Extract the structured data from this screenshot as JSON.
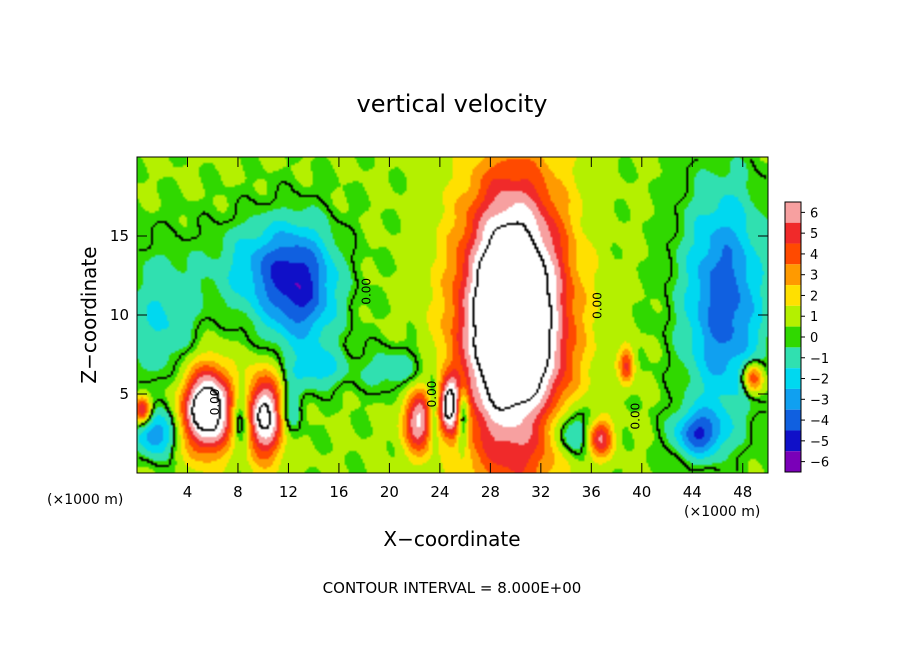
{
  "chart_data": {
    "type": "heatmap",
    "title": "vertical velocity",
    "xlabel": "X−coordinate",
    "ylabel": "Z−coordinate",
    "x_unit_label": "(×1000 m)",
    "y_unit_label": "(×1000 m)",
    "xlim": [
      0,
      50
    ],
    "ylim": [
      0,
      20
    ],
    "x_ticks": [
      4,
      8,
      12,
      16,
      20,
      24,
      28,
      32,
      36,
      40,
      44,
      48
    ],
    "x_tick_labels": [
      "4",
      "8",
      "12",
      "16",
      "20",
      "24",
      "28",
      "32",
      "36",
      "40",
      "44",
      "48"
    ],
    "y_ticks": [
      5,
      10,
      15
    ],
    "y_tick_labels": [
      "5",
      "10",
      "15"
    ],
    "colorbar": {
      "levels": [
        6,
        5,
        4,
        3,
        2,
        1,
        0,
        -1,
        -2,
        -3,
        -4,
        -5,
        -6
      ],
      "labels": [
        "6",
        "5",
        "4",
        "3",
        "2",
        "1",
        "0",
        "−1",
        "−2",
        "−3",
        "−4",
        "−5",
        "−6"
      ],
      "colors": [
        "#f7a0a0",
        "#f02a2a",
        "#ff4a00",
        "#ff9a00",
        "#ffe000",
        "#b4f000",
        "#30d800",
        "#30e0b0",
        "#00d8f0",
        "#10a0f0",
        "#1060e0",
        "#1010c8",
        "#7a00b8"
      ]
    },
    "contour_labels": [
      {
        "text": "0.00",
        "x": 6.5,
        "z": 4.5
      },
      {
        "text": "0.00",
        "x": 18.5,
        "z": 11.5
      },
      {
        "text": "0.00",
        "x": 23.7,
        "z": 5.0
      },
      {
        "text": "0.00",
        "x": 36.8,
        "z": 10.6
      },
      {
        "text": "0.00",
        "x": 39.8,
        "z": 3.6
      }
    ],
    "features": [
      {
        "kind": "updraft",
        "x": 29.8,
        "z": 9.5,
        "rx": 4.0,
        "rz": 8.5,
        "amp": 13
      },
      {
        "kind": "updraft",
        "x": 5.6,
        "z": 4.0,
        "rx": 2.0,
        "rz": 2.6,
        "amp": 10
      },
      {
        "kind": "updraft",
        "x": 10.2,
        "z": 3.6,
        "rx": 1.6,
        "rz": 2.6,
        "amp": 8
      },
      {
        "kind": "updraft",
        "x": 22.3,
        "z": 3.3,
        "rx": 1.2,
        "rz": 2.0,
        "amp": 6
      },
      {
        "kind": "updraft",
        "x": 24.8,
        "z": 4.3,
        "rx": 0.9,
        "rz": 1.8,
        "amp": 7
      },
      {
        "kind": "updraft",
        "x": 36.7,
        "z": 2.2,
        "rx": 1.0,
        "rz": 1.2,
        "amp": 5
      },
      {
        "kind": "updraft",
        "x": 38.8,
        "z": 6.8,
        "rx": 0.6,
        "rz": 1.2,
        "amp": 4
      },
      {
        "kind": "updraft",
        "x": 48.8,
        "z": 6.0,
        "rx": 0.8,
        "rz": 1.0,
        "amp": 5
      },
      {
        "kind": "updraft",
        "x": 0.4,
        "z": 4.0,
        "rx": 0.7,
        "rz": 0.9,
        "amp": 6
      },
      {
        "kind": "downdraft",
        "x": 13.0,
        "z": 11.5,
        "rx": 3.0,
        "rz": 4.0,
        "amp": -4.5
      },
      {
        "kind": "downdraft",
        "x": 10.0,
        "z": 13.0,
        "rx": 4.0,
        "rz": 3.0,
        "amp": -2.8
      },
      {
        "kind": "downdraft",
        "x": 46.5,
        "z": 11.0,
        "rx": 3.2,
        "rz": 7.0,
        "amp": -4.8
      },
      {
        "kind": "downdraft",
        "x": 2.0,
        "z": 10.0,
        "rx": 3.0,
        "rz": 4.5,
        "amp": -2.2
      },
      {
        "kind": "downdraft",
        "x": 44.5,
        "z": 2.5,
        "rx": 2.0,
        "rz": 1.5,
        "amp": -4.5
      },
      {
        "kind": "downdraft",
        "x": 1.5,
        "z": 2.5,
        "rx": 1.6,
        "rz": 1.5,
        "amp": -4.0
      },
      {
        "kind": "downdraft",
        "x": 8.2,
        "z": 3.5,
        "rx": 0.8,
        "rz": 2.0,
        "amp": -4.0
      },
      {
        "kind": "downdraft",
        "x": 12.0,
        "z": 4.0,
        "rx": 1.0,
        "rz": 2.0,
        "amp": -3.0
      },
      {
        "kind": "downdraft",
        "x": 23.5,
        "z": 4.0,
        "rx": 0.5,
        "rz": 2.0,
        "amp": -3.0
      },
      {
        "kind": "downdraft",
        "x": 25.8,
        "z": 3.8,
        "rx": 0.5,
        "rz": 2.0,
        "amp": -5.0
      },
      {
        "kind": "downdraft",
        "x": 34.5,
        "z": 2.5,
        "rx": 1.5,
        "rz": 1.5,
        "amp": -3.0
      },
      {
        "kind": "downdraft",
        "x": 20.5,
        "z": 6.5,
        "rx": 3.0,
        "rz": 1.5,
        "amp": -1.8
      },
      {
        "kind": "downdraft",
        "x": 14.5,
        "z": 6.5,
        "rx": 2.0,
        "rz": 1.2,
        "amp": -2.0
      },
      {
        "kind": "downdraft",
        "x": 31.5,
        "z": 3.5,
        "rx": 4.0,
        "rz": 2.0,
        "amp": -1.5
      }
    ]
  },
  "footer": {
    "contour_interval": "CONTOUR INTERVAL = 8.000E+00"
  }
}
